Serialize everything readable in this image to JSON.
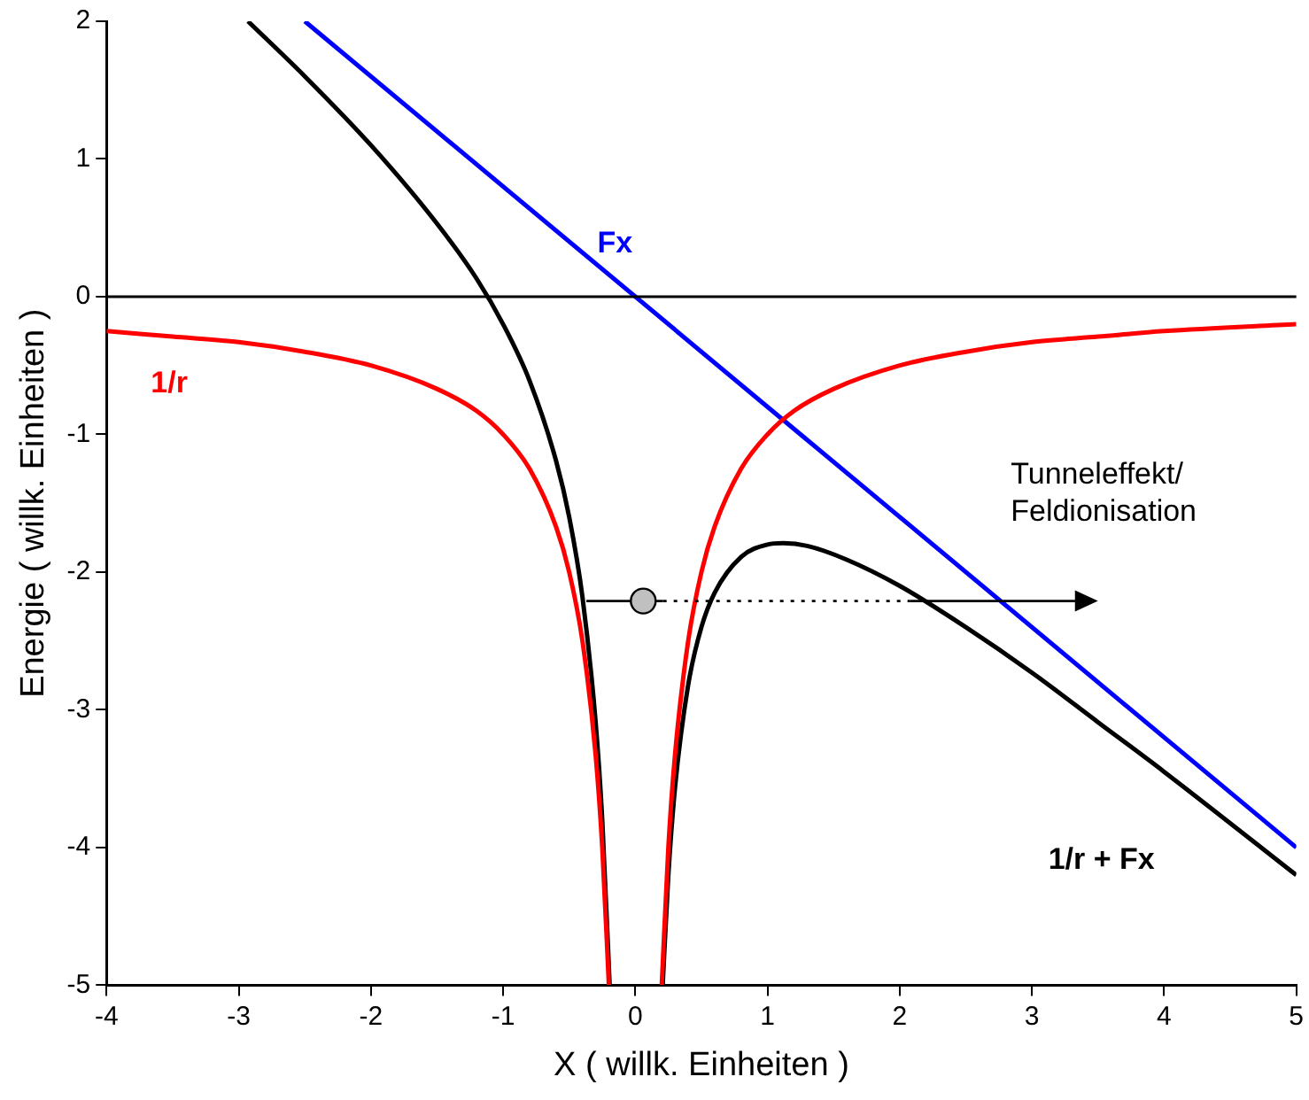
{
  "chart_data": {
    "type": "line",
    "xlabel": "X ( willk. Einheiten )",
    "ylabel": "Energie ( willk. Einheiten )",
    "xlim": [
      -4,
      5
    ],
    "ylim": [
      -5,
      2
    ],
    "xticks": [
      -4,
      -3,
      -2,
      -1,
      0,
      1,
      2,
      3,
      4,
      5
    ],
    "yticks": [
      -5,
      -4,
      -3,
      -2,
      -1,
      0,
      1,
      2
    ],
    "grid": false,
    "legend": false,
    "marker": "none",
    "line_style": "solid",
    "ref_lines": [
      {
        "axis": "y",
        "value": 0,
        "color": "#000000"
      }
    ],
    "annotations": [
      "Tunneleffekt/\nFeldionisation"
    ],
    "series": [
      {
        "name": "1/r",
        "color": "#ff0000",
        "x": [
          -4,
          -3.5,
          -3,
          -2.5,
          -2,
          -1.5,
          -1.2,
          -1,
          -0.8,
          -0.6,
          -0.5,
          -0.4,
          -0.3,
          -0.25,
          -0.2,
          0,
          0.2,
          0.25,
          0.3,
          0.4,
          0.5,
          0.6,
          0.8,
          1,
          1.2,
          1.5,
          2,
          2.5,
          3,
          3.5,
          4,
          5
        ],
        "values": [
          -0.25,
          -0.29,
          -0.33,
          -0.4,
          -0.5,
          -0.67,
          -0.83,
          -1,
          -1.25,
          -1.67,
          -2,
          -2.5,
          -3.33,
          -4,
          -5,
          null,
          -5,
          -4,
          -3.33,
          -2.5,
          -2,
          -1.67,
          -1.25,
          -1,
          -0.83,
          -0.67,
          -0.5,
          -0.4,
          -0.33,
          -0.29,
          -0.25,
          -0.2
        ]
      },
      {
        "name": "Fx",
        "color": "#0000ff",
        "x": [
          -2.5,
          5
        ],
        "values": [
          2,
          -4
        ]
      },
      {
        "name": "1/r + Fx",
        "color": "#000000",
        "x": [
          -2.93,
          -2.5,
          -2,
          -1.5,
          -1.2,
          -1,
          -0.8,
          -0.6,
          -0.5,
          -0.4,
          -0.3,
          -0.25,
          -0.194,
          0,
          0.207,
          0.25,
          0.3,
          0.4,
          0.5,
          0.6,
          0.8,
          1,
          1.12,
          1.3,
          1.6,
          2,
          2.5,
          3,
          3.5,
          4,
          5
        ],
        "values": [
          2,
          1.6,
          1.1,
          0.53,
          0.13,
          -0.2,
          -0.61,
          -1.19,
          -1.6,
          -2.18,
          -3.09,
          -3.8,
          -5,
          null,
          -5,
          -4.2,
          -3.57,
          -2.82,
          -2.4,
          -2.15,
          -1.89,
          -1.8,
          -1.79,
          -1.81,
          -1.91,
          -2.1,
          -2.4,
          -2.73,
          -3.09,
          -3.45,
          -4.2
        ]
      }
    ]
  }
}
